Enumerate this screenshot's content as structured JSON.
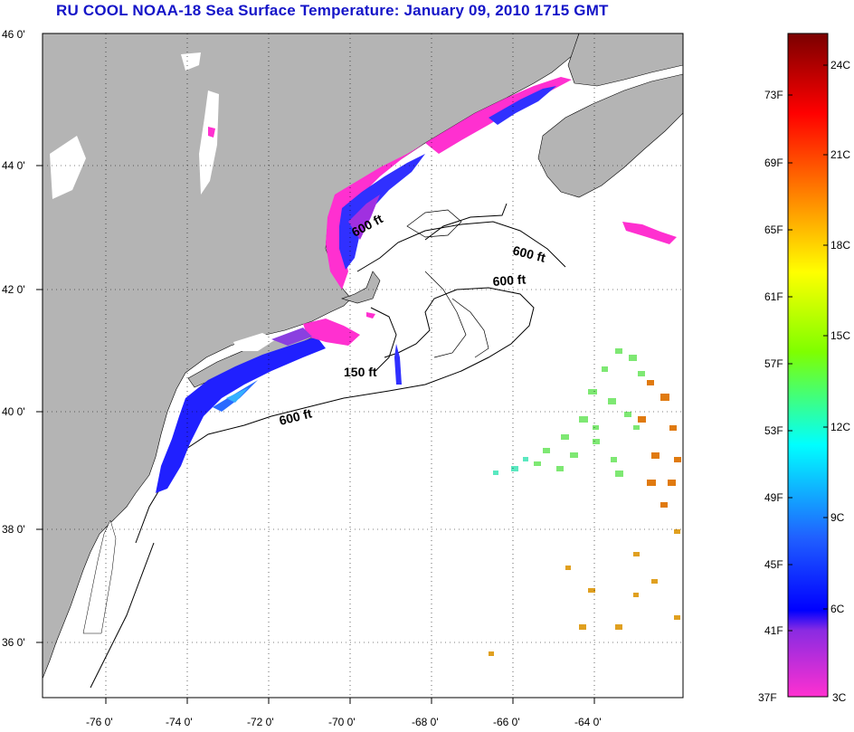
{
  "title": "RU COOL  NOAA-18  Sea Surface Temperature:  January 09, 2010 1715 GMT",
  "colors": {
    "land": "#b4b4b4",
    "ocean": "#ffffff",
    "frame": "#000000"
  },
  "axes": {
    "lat_labels": [
      "46 0'",
      "44 0'",
      "42 0'",
      "40 0'",
      "38 0'",
      "36 0'"
    ],
    "lon_labels": [
      "-76 0'",
      "-74 0'",
      "-72 0'",
      "-70 0'",
      "-68 0'",
      "-66 0'",
      "-64 0'"
    ]
  },
  "contour_labels": [
    "600 ft",
    "600 ft",
    "600 ft",
    "150 ft",
    "600 ft"
  ],
  "colorbar": {
    "fahrenheit_labels": [
      "73F",
      "69F",
      "65F",
      "61F",
      "57F",
      "53F",
      "49F",
      "45F",
      "41F",
      "37F"
    ],
    "celsius_labels": [
      "24C",
      "21C",
      "18C",
      "15C",
      "12C",
      "9C",
      "6C",
      "3C"
    ],
    "gradient_colors": [
      "#8b0000",
      "#ff0000",
      "#ff7f00",
      "#ffff00",
      "#7fff00",
      "#00ffff",
      "#0000ff",
      "#8a2be2",
      "#ff00ff"
    ]
  }
}
